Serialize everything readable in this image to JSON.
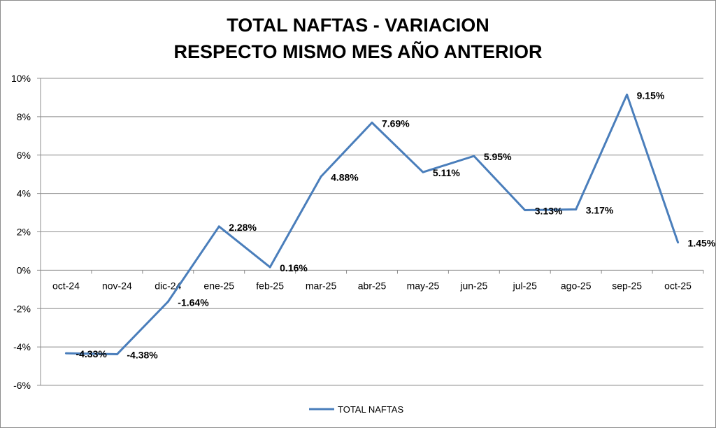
{
  "chart_data": {
    "type": "line",
    "title_lines": [
      "TOTAL NAFTAS - VARIACION",
      "RESPECTO MISMO MES AÑO ANTERIOR"
    ],
    "categories": [
      "oct-24",
      "nov-24",
      "dic-24",
      "ene-25",
      "feb-25",
      "mar-25",
      "abr-25",
      "may-25",
      "jun-25",
      "jul-25",
      "ago-25",
      "sep-25",
      "oct-25"
    ],
    "series": [
      {
        "name": "TOTAL NAFTAS",
        "color": "#4a7ebb",
        "values": [
          -4.33,
          -4.38,
          -1.64,
          2.28,
          0.16,
          4.88,
          7.69,
          5.11,
          5.95,
          3.13,
          3.17,
          9.15,
          1.45
        ],
        "labels": [
          "-4.33%",
          "-4.38%",
          "-1.64%",
          "2.28%",
          "0.16%",
          "4.88%",
          "7.69%",
          "5.11%",
          "5.95%",
          "3.13%",
          "3.17%",
          "9.15%",
          "1.45%"
        ]
      }
    ],
    "ylim": [
      -6,
      10
    ],
    "yticks": [
      10,
      8,
      6,
      4,
      2,
      0,
      -2,
      -4,
      -6
    ],
    "ytick_labels": [
      "10%",
      "8%",
      "6%",
      "4%",
      "2%",
      "0%",
      "-2%",
      "-4%",
      "-6%"
    ],
    "grid": true,
    "legend": "bottom",
    "xlabel": "",
    "ylabel": ""
  }
}
